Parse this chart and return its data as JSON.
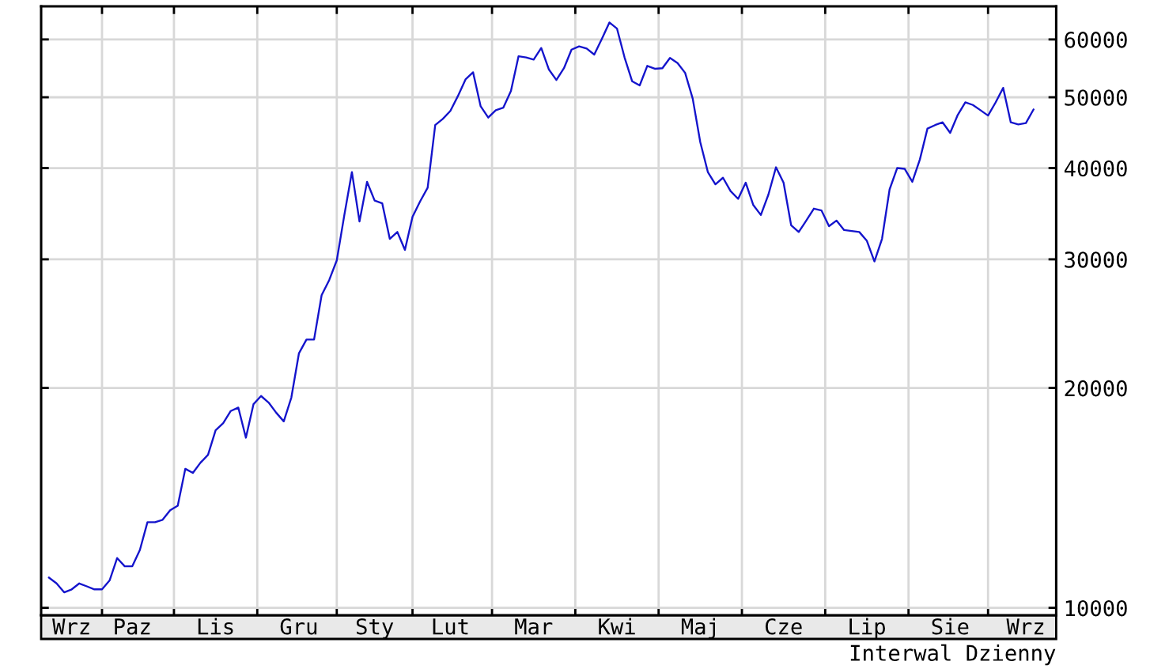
{
  "chart_data": {
    "type": "line",
    "annotations": [
      "Interwal Dzienny"
    ],
    "categories": [
      null,
      null,
      null,
      "Wrz",
      null,
      null,
      null,
      null,
      null,
      null,
      null,
      "Paz",
      null,
      null,
      null,
      null,
      null,
      null,
      null,
      null,
      null,
      null,
      "Lis",
      null,
      null,
      null,
      null,
      null,
      null,
      null,
      null,
      null,
      null,
      "Gru",
      null,
      null,
      null,
      null,
      null,
      null,
      null,
      null,
      null,
      "Sty",
      null,
      null,
      null,
      null,
      null,
      null,
      null,
      null,
      null,
      "Lut",
      null,
      null,
      null,
      null,
      null,
      null,
      null,
      null,
      null,
      null,
      "Mar",
      null,
      null,
      null,
      null,
      null,
      null,
      null,
      null,
      null,
      null,
      "Kwi",
      null,
      null,
      null,
      null,
      null,
      null,
      null,
      null,
      null,
      null,
      "Maj",
      null,
      null,
      null,
      null,
      null,
      null,
      null,
      null,
      null,
      null,
      "Cze",
      null,
      null,
      null,
      null,
      null,
      null,
      null,
      null,
      null,
      null,
      "Lip",
      null,
      null,
      null,
      null,
      null,
      null,
      null,
      null,
      null,
      null,
      "Sie",
      null,
      null,
      null,
      null,
      null,
      null,
      null,
      null,
      null,
      "Wrz",
      null
    ],
    "series": [
      {
        "color": "#1414cc",
        "values": [
          11000,
          10800,
          10500,
          10600,
          10800,
          10700,
          10600,
          10600,
          10900,
          11700,
          11400,
          11400,
          12000,
          13100,
          13100,
          13200,
          13600,
          13800,
          15500,
          15300,
          15800,
          16200,
          17500,
          17900,
          18600,
          18800,
          17100,
          19000,
          19500,
          19100,
          18500,
          18000,
          19400,
          22300,
          23300,
          23300,
          26800,
          28100,
          29900,
          34500,
          39500,
          33800,
          38300,
          36100,
          35800,
          32000,
          32700,
          30900,
          34300,
          36000,
          37600,
          45800,
          46700,
          47900,
          50200,
          52900,
          54100,
          48600,
          46900,
          48000,
          48400,
          51000,
          56900,
          56700,
          56300,
          58400,
          54600,
          52800,
          54800,
          58100,
          58700,
          58300,
          57200,
          60100,
          63300,
          62100,
          56700,
          52600,
          51900,
          55200,
          54700,
          54800,
          56600,
          55700,
          54000,
          49800,
          43400,
          39500,
          38000,
          38800,
          37200,
          36300,
          38200,
          35600,
          34500,
          36800,
          40100,
          38200,
          33400,
          32700,
          33900,
          35200,
          35000,
          33300,
          33900,
          32900,
          32800,
          32700,
          31800,
          29800,
          32000,
          37400,
          40000,
          39900,
          38300,
          41100,
          45300,
          45800,
          46200,
          44700,
          47300,
          49200,
          48800,
          48000,
          47200,
          49200,
          51500,
          46200,
          45900,
          46100,
          48100
        ]
      }
    ],
    "ylim": [
      9770,
      66600
    ],
    "yticks": [
      10000,
      20000,
      30000,
      40000,
      50000,
      60000
    ],
    "log": "y",
    "grid": true,
    "marker": "none",
    "line_style": "solid"
  }
}
